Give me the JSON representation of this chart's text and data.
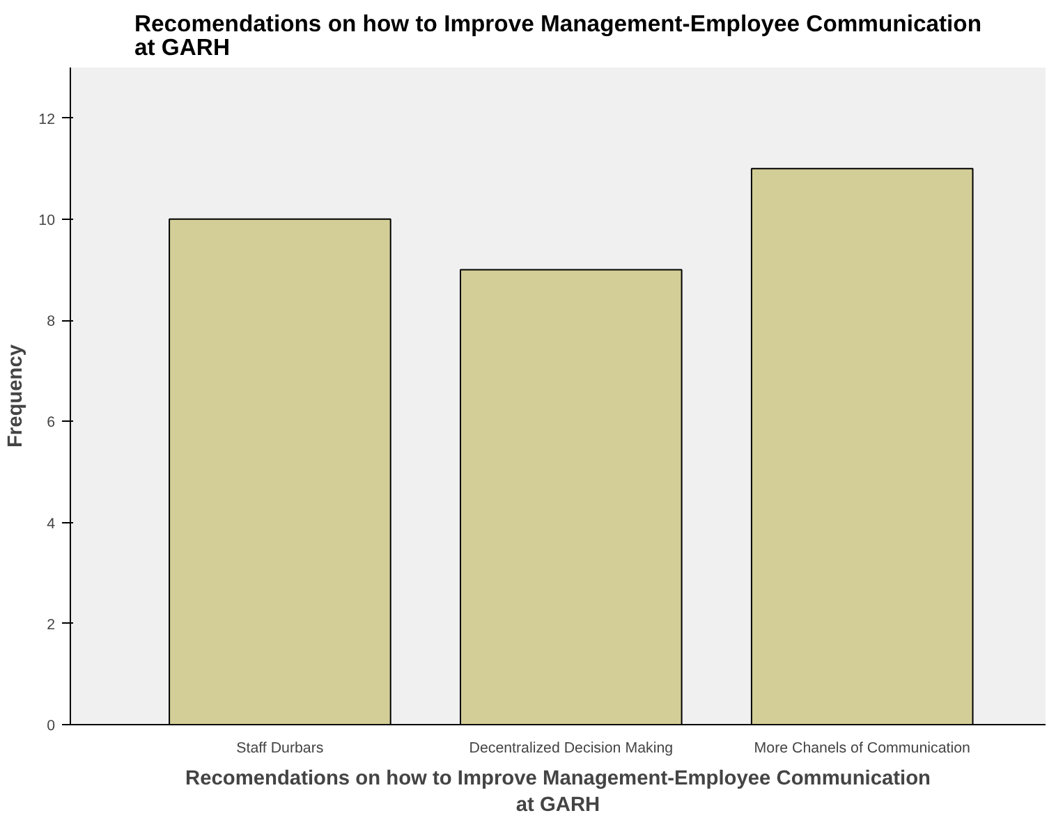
{
  "chart_data": {
    "type": "bar",
    "title": "Recomendations on how to Improve Management-Employee Communication at GARH",
    "xlabel": "Recomendations on how to Improve Management-Employee Communication at GARH",
    "ylabel": "Frequency",
    "categories": [
      "Staff Durbars",
      "Decentralized Decision Making",
      "More Chanels of Communication"
    ],
    "values": [
      10,
      9,
      11
    ],
    "color": "#d3ce97",
    "ylim": [
      0,
      13
    ],
    "yticks": [
      0,
      2,
      4,
      6,
      8,
      10,
      12
    ],
    "grid": false
  }
}
